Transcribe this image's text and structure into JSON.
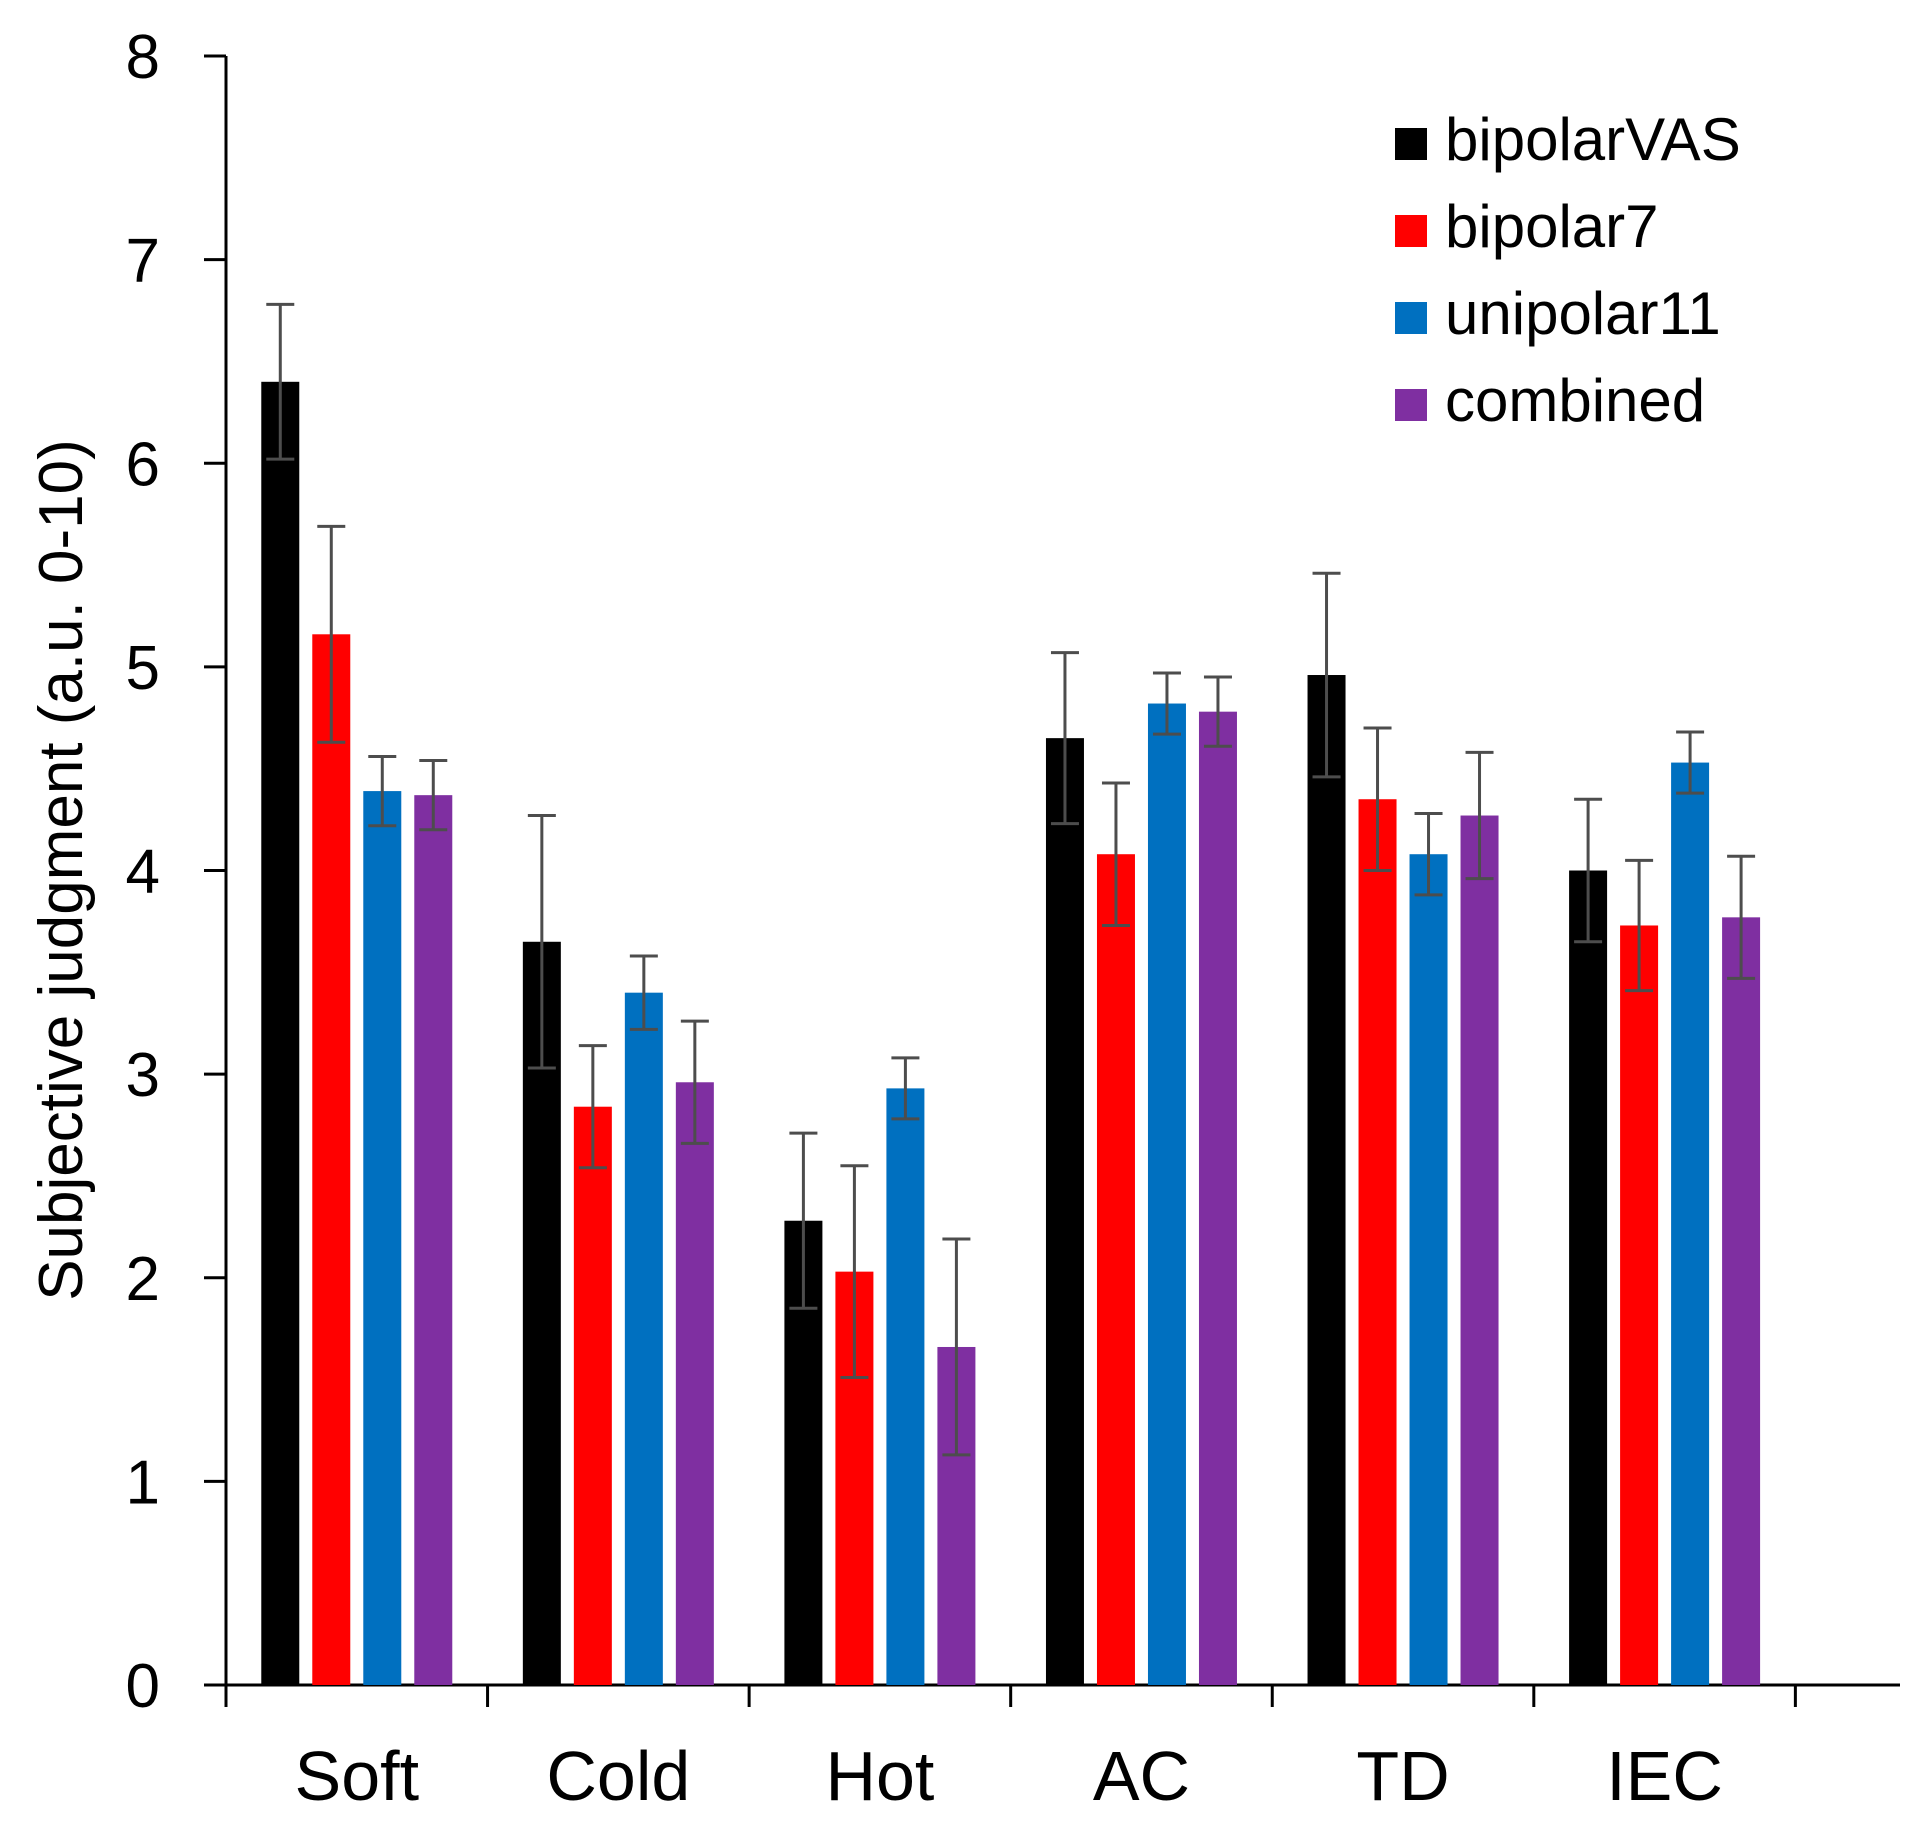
{
  "chart_data": {
    "type": "bar",
    "title": "",
    "xlabel": "",
    "ylabel": "Subjective judgment (a.u. 0-10)",
    "ylim": [
      0,
      8
    ],
    "yticks": [
      "0",
      "1",
      "2",
      "3",
      "4",
      "5",
      "6",
      "7",
      "8"
    ],
    "categories": [
      "Soft",
      "Cold",
      "Hot",
      "AC",
      "TD",
      "IEC"
    ],
    "legend_position": "top-right",
    "series": [
      {
        "name": "bipolarVAS",
        "color": "#000000",
        "values": [
          6.4,
          3.65,
          2.28,
          4.65,
          4.96,
          4.0
        ],
        "errors": [
          0.38,
          0.62,
          0.43,
          0.42,
          0.5,
          0.35
        ]
      },
      {
        "name": "bipolar7",
        "color": "#ff0000",
        "values": [
          5.16,
          2.84,
          2.03,
          4.08,
          4.35,
          3.73
        ],
        "errors": [
          0.53,
          0.3,
          0.52,
          0.35,
          0.35,
          0.32
        ]
      },
      {
        "name": "unipolar11",
        "color": "#0070c0",
        "values": [
          4.39,
          3.4,
          2.93,
          4.82,
          4.08,
          4.53
        ],
        "errors": [
          0.17,
          0.18,
          0.15,
          0.15,
          0.2,
          0.15
        ]
      },
      {
        "name": "combined",
        "color": "#7f2fa1",
        "values": [
          4.37,
          2.96,
          1.66,
          4.78,
          4.27,
          3.77
        ],
        "errors": [
          0.17,
          0.3,
          0.53,
          0.17,
          0.31,
          0.3
        ]
      }
    ],
    "error_bar_color": "#4d4d4d"
  }
}
